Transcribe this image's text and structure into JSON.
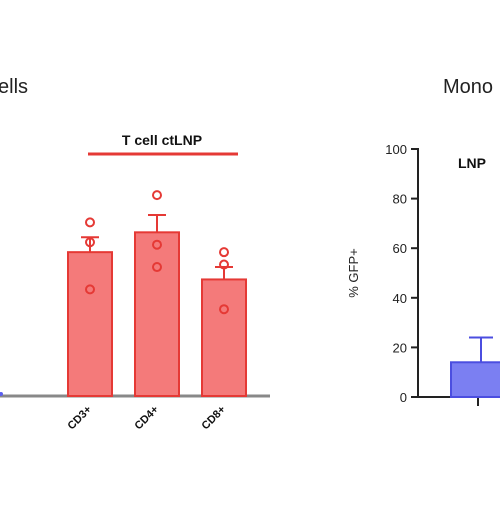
{
  "chart_data": [
    {
      "type": "bar",
      "title": "ells",
      "group_label": "T cell ctLNP",
      "categories": [
        "CD3+",
        "CD4+",
        "CD8+"
      ],
      "values": [
        58,
        66,
        47
      ],
      "errors": [
        6,
        7,
        5
      ],
      "points": [
        [
          70,
          62,
          43
        ],
        [
          81,
          61,
          52
        ],
        [
          58,
          53,
          35
        ]
      ],
      "color": "#f47a7a",
      "stroke": "#e53935",
      "group_line_color": "#e53935"
    },
    {
      "type": "bar",
      "title": "Mono",
      "partial_label": "LNP",
      "ylabel": "% GFP+",
      "ylim": [
        0,
        100
      ],
      "yticks": [
        0,
        20,
        40,
        60,
        80,
        100
      ],
      "values": [
        14
      ],
      "errors": [
        10
      ],
      "color": "#7b7ff2",
      "stroke": "#4b4ee0"
    }
  ]
}
